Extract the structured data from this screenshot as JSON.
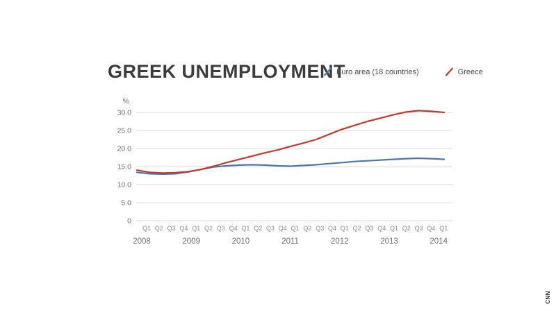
{
  "page": {
    "watermark": "CNN"
  },
  "header": {
    "title": "GREEK UNEMPLOYMENT",
    "legend": [
      {
        "label": "Euro area (18 countries)",
        "color": "#4b77a9"
      },
      {
        "label": "Greece",
        "color": "#bf3a30"
      }
    ]
  },
  "chart_data": {
    "type": "line",
    "title": "GREEK UNEMPLOYMENT",
    "xlabel": "",
    "ylabel": "%",
    "ylim": [
      0,
      30
    ],
    "grid": true,
    "legend_position": "top-right",
    "yticks": [
      0,
      5,
      10,
      15,
      20,
      25,
      30
    ],
    "ytick_labels": [
      "0",
      "5.0",
      "10.0",
      "15.0",
      "20.0",
      "25.0",
      "30.0"
    ],
    "x_quarter_labels": [
      "Q1",
      "Q2",
      "Q3",
      "Q4",
      "Q1",
      "Q2",
      "Q3",
      "Q4",
      "Q1",
      "Q2",
      "Q3",
      "Q4",
      "Q1",
      "Q2",
      "Q3",
      "Q4",
      "Q1",
      "Q2",
      "Q3",
      "Q4",
      "Q1",
      "Q2",
      "Q3",
      "Q4",
      "Q1"
    ],
    "year_labels": [
      "2008",
      "2009",
      "2010",
      "2011",
      "2012",
      "2013",
      "2014"
    ],
    "series": [
      {
        "name": "Euro area (18 countries)",
        "color": "#4b77a9",
        "values": [
          13.4,
          13.0,
          12.9,
          13.0,
          13.5,
          14.2,
          14.9,
          15.2,
          15.4,
          15.5,
          15.4,
          15.2,
          15.1,
          15.3,
          15.5,
          15.8,
          16.1,
          16.4,
          16.6,
          16.8,
          17.0,
          17.2,
          17.3,
          17.2,
          17.0
        ]
      },
      {
        "name": "Greece",
        "color": "#bf3a30",
        "values": [
          14.0,
          13.4,
          13.2,
          13.3,
          13.6,
          14.2,
          15.1,
          16.1,
          17.0,
          17.9,
          18.8,
          19.6,
          20.6,
          21.5,
          22.5,
          23.9,
          25.3,
          26.4,
          27.5,
          28.4,
          29.3,
          30.1,
          30.5,
          30.3,
          30.0
        ]
      }
    ]
  }
}
